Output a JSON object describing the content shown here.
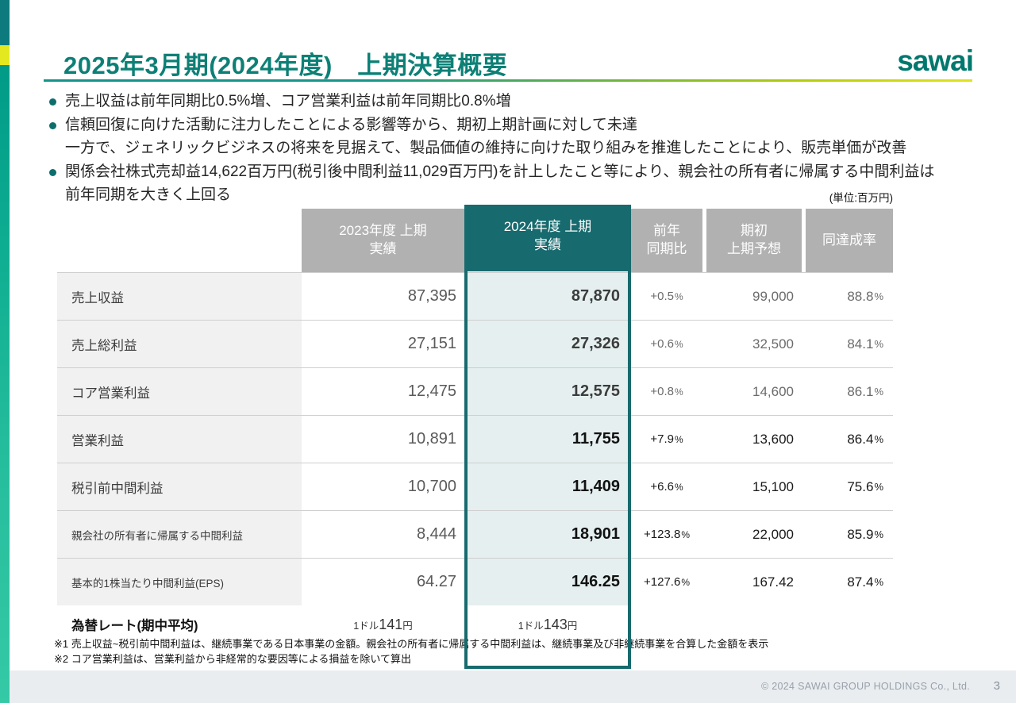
{
  "slide": {
    "title": "2025年3月期(2024年度)　上期決算概要",
    "logo_text": "sawai",
    "unit_note": "(単位:百万円)",
    "page_number": "3",
    "copyright": "© 2024 SAWAI GROUP HOLDINGS Co., Ltd."
  },
  "bullets": [
    {
      "lines": [
        "売上収益は前年同期比0.5%増、コア営業利益は前年同期比0.8%増"
      ]
    },
    {
      "lines": [
        "信頼回復に向けた活動に注力したことによる影響等から、期初上期計画に対して未達",
        "一方で、ジェネリックビジネスの将来を見据えて、製品価値の維持に向けた取り組みを推進したことにより、販売単価が改善"
      ]
    },
    {
      "lines": [
        "関係会社株式売却益14,622百万円(税引後中間利益11,029百万円)を計上したこと等により、親会社の所有者に帰属する中間利益は",
        "前年同期を大きく上回る"
      ]
    }
  ],
  "table": {
    "percent_sign": "%",
    "headers": {
      "fy2023": {
        "line1": "2023年度 上期",
        "line2": "実績"
      },
      "fy2024": {
        "line1": "2024年度 上期",
        "line2": "実績"
      },
      "yoy": {
        "line1": "前年",
        "line2": "同期比"
      },
      "forecast": {
        "line1": "期初",
        "line2": "上期予想"
      },
      "achievement": {
        "line1": "同達成率",
        "line2": ""
      }
    },
    "rows": [
      {
        "label": "売上収益",
        "fy2023": "87,395",
        "fy2024": "87,870",
        "yoy": "+0.5",
        "forecast": "99,000",
        "achievement": "88.8"
      },
      {
        "label": "売上総利益",
        "fy2023": "27,151",
        "fy2024": "27,326",
        "yoy": "+0.6",
        "forecast": "32,500",
        "achievement": "84.1"
      },
      {
        "label": "コア営業利益",
        "fy2023": "12,475",
        "fy2024": "12,575",
        "yoy": "+0.8",
        "forecast": "14,600",
        "achievement": "86.1"
      },
      {
        "label": "営業利益",
        "fy2023": "10,891",
        "fy2024": "11,755",
        "yoy": "+7.9",
        "forecast": "13,600",
        "achievement": "86.4"
      },
      {
        "label": "税引前中間利益",
        "fy2023": "10,700",
        "fy2024": "11,409",
        "yoy": "+6.6",
        "forecast": "15,100",
        "achievement": "75.6"
      },
      {
        "label": "親会社の所有者に帰属する中間利益",
        "fy2023": "8,444",
        "fy2024": "18,901",
        "yoy": "+123.8",
        "forecast": "22,000",
        "achievement": "85.9"
      },
      {
        "label": "基本的1株当たり中間利益(EPS)",
        "fy2023": "64.27",
        "fy2024": "146.25",
        "yoy": "+127.6",
        "forecast": "167.42",
        "achievement": "87.4"
      }
    ],
    "exchange_rate": {
      "label": "為替レート(期中平均)",
      "fy2023": {
        "prefix": "1ドル",
        "value": "141",
        "unit": "円"
      },
      "fy2024": {
        "prefix": "1ドル",
        "value": "143",
        "unit": "円"
      }
    }
  },
  "footnotes": [
    "※1 売上収益~税引前中間利益は、継続事業である日本事業の金額。親会社の所有者に帰属する中間利益は、継続事業及び非継続事業を合算した金額を表示",
    "※2 コア営業利益は、営業利益から非経常的な要因等による損益を除いて算出"
  ]
}
